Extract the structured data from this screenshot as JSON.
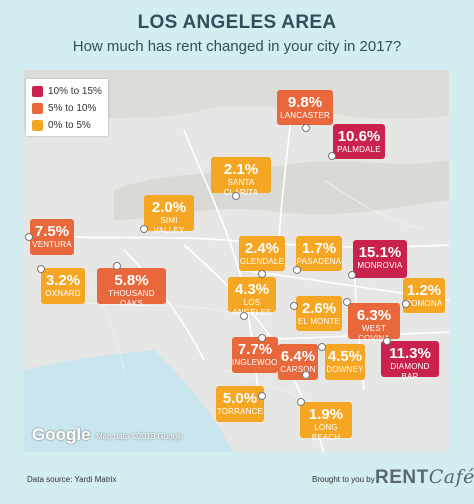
{
  "header": {
    "title": "LOS ANGELES AREA",
    "subtitle": "How much has rent changed in your city in 2017?"
  },
  "legend": {
    "items": [
      {
        "label": "10% to 15%",
        "color": "#c9234d"
      },
      {
        "label": "5% to 10%",
        "color": "#e8673b"
      },
      {
        "label": "0% to 5%",
        "color": "#f5a623"
      }
    ]
  },
  "cities": [
    {
      "name": "LANCASTER",
      "value": "9.8%",
      "band": "mid"
    },
    {
      "name": "PALMDALE",
      "value": "10.6%",
      "band": "high"
    },
    {
      "name": "SANTA CLARITA",
      "value": "2.1%",
      "band": "low"
    },
    {
      "name": "SIMI VALLEY",
      "value": "2.0%",
      "band": "low"
    },
    {
      "name": "VENTURA",
      "value": "7.5%",
      "band": "mid"
    },
    {
      "name": "OXNARD",
      "value": "3.2%",
      "band": "low"
    },
    {
      "name": "THOUSAND OAKS",
      "value": "5.8%",
      "band": "mid"
    },
    {
      "name": "GLENDALE",
      "value": "2.4%",
      "band": "low"
    },
    {
      "name": "PASADENA",
      "value": "1.7%",
      "band": "low"
    },
    {
      "name": "MONROVIA",
      "value": "15.1%",
      "band": "high"
    },
    {
      "name": "POMONA",
      "value": "1.2%",
      "band": "low"
    },
    {
      "name": "LOS ANGELES",
      "value": "4.3%",
      "band": "low"
    },
    {
      "name": "EL MONTE",
      "value": "2.6%",
      "band": "low"
    },
    {
      "name": "WEST COVINA",
      "value": "6.3%",
      "band": "mid"
    },
    {
      "name": "INGLEWOOD",
      "value": "7.7%",
      "band": "mid"
    },
    {
      "name": "CARSON",
      "value": "6.4%",
      "band": "mid"
    },
    {
      "name": "DOWNEY",
      "value": "4.5%",
      "band": "low"
    },
    {
      "name": "DIAMOND BAR",
      "value": "11.3%",
      "band": "high"
    },
    {
      "name": "TORRANCE",
      "value": "5.0%",
      "band": "low"
    },
    {
      "name": "LONG BEACH",
      "value": "1.9%",
      "band": "low"
    }
  ],
  "map": {
    "attribution_logo": "Google",
    "attribution_text": "Map data ©2018 Google"
  },
  "footer": {
    "source": "Data source: Yardi Matrix",
    "brought_by": "Brought to you by",
    "brand_rent": "RENT",
    "brand_cafe": "Café"
  }
}
